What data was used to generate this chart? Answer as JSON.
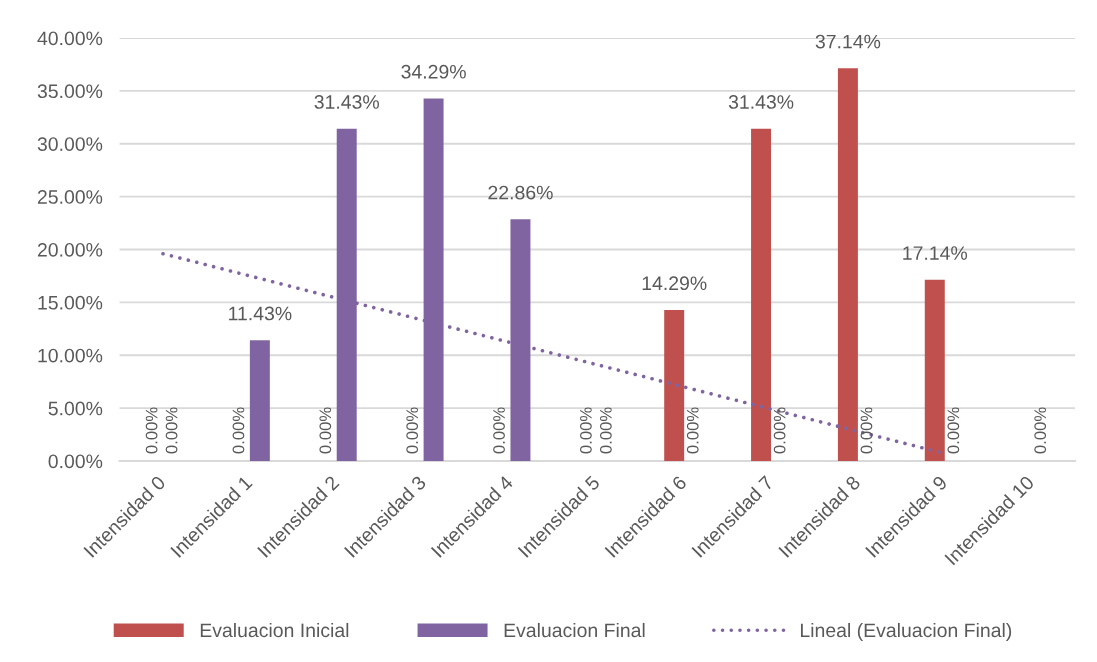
{
  "chart_data": {
    "type": "bar",
    "categories": [
      "Intensidad 0",
      "Intensidad 1",
      "Intensidad 2",
      "Intensidad 3",
      "Intensidad 4",
      "Intensidad 5",
      "Intensidad 6",
      "Intensidad 7",
      "Intensidad 8",
      "Intensidad 9",
      "Intensidad 10"
    ],
    "ylim": [
      0,
      40
    ],
    "yticks": [
      {
        "value": 0,
        "label": "0.00%"
      },
      {
        "value": 5,
        "label": "5.00%"
      },
      {
        "value": 10,
        "label": "10.00%"
      },
      {
        "value": 15,
        "label": "15.00%"
      },
      {
        "value": 20,
        "label": "20.00%"
      },
      {
        "value": 25,
        "label": "25.00%"
      },
      {
        "value": 30,
        "label": "30.00%"
      },
      {
        "value": 35,
        "label": "35.00%"
      },
      {
        "value": 40,
        "label": "40.00%"
      }
    ],
    "grid": "y",
    "legend": "bottom",
    "series": [
      {
        "name": "Evaluacion Inicial",
        "color": "#c0504d",
        "values": [
          0,
          0,
          0,
          0,
          0,
          0,
          14.29,
          31.43,
          37.14,
          17.14,
          null
        ],
        "value_labels": [
          "0.00%",
          "0.00%",
          "0.00%",
          "0.00%",
          "0.00%",
          "0.00%",
          "14.29%",
          "31.43%",
          "37.14%",
          "17.14%",
          null
        ]
      },
      {
        "name": "Evaluacion Final",
        "color": "#8064a2",
        "values": [
          0,
          11.43,
          31.43,
          34.29,
          22.86,
          0,
          0,
          0,
          0,
          0,
          0
        ],
        "value_labels": [
          "0.00%",
          "11.43%",
          "31.43%",
          "34.29%",
          "22.86%",
          "0.00%",
          "0.00%",
          "0.00%",
          "0.00%",
          "0.00%",
          "0.00%"
        ]
      },
      {
        "name": "Lineal (Evaluacion Final)",
        "type": "line",
        "color": "#8064a2",
        "line_style": "dotted",
        "values": [
          19.6,
          17.5,
          15.4,
          13.3,
          11.2,
          9.1,
          7.0,
          4.9,
          2.8,
          0.7,
          null
        ]
      }
    ]
  }
}
